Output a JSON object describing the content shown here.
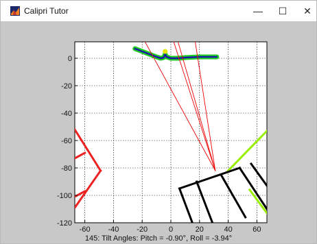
{
  "window": {
    "title": "Calipri Tutor",
    "icon": "matlab-icon",
    "controls": {
      "minimize": "—",
      "maximize": "☐",
      "close": "✕"
    }
  },
  "status": {
    "text": "145: Tilt Angles: Pitch = -0.90°, Roll = -3.94°"
  },
  "chart_data": {
    "type": "line",
    "title": "",
    "xlabel": "",
    "ylabel": "",
    "xlim": [
      -67,
      67
    ],
    "ylim": [
      -120,
      12
    ],
    "xticks": [
      -60,
      -40,
      -20,
      0,
      20,
      40,
      60
    ],
    "yticks": [
      0,
      -20,
      -40,
      -60,
      -80,
      -100,
      -120
    ],
    "grid": true,
    "grid_style": "dotted",
    "series": [
      {
        "role": "profile-fill",
        "color": "#22cc22",
        "x": [
          -25,
          -20,
          -15,
          -10,
          -7,
          -5,
          -4,
          -3,
          0,
          5,
          10,
          20,
          28,
          32
        ],
        "y": [
          7,
          5,
          3,
          1,
          0,
          0.5,
          3,
          1,
          0,
          0,
          0.5,
          1,
          1,
          1
        ]
      },
      {
        "role": "profile-line",
        "color": "#1a1aa8",
        "x": [
          -25,
          -20,
          -15,
          -10,
          -7,
          -5,
          -4,
          -3,
          0,
          5,
          10,
          20,
          28,
          32
        ],
        "y": [
          7,
          5,
          3,
          1,
          0,
          0.5,
          3,
          1,
          0,
          0,
          0.5,
          1,
          1,
          1
        ]
      },
      {
        "role": "marker",
        "color": "#e6e600",
        "x": [
          -4
        ],
        "y": [
          5
        ]
      },
      {
        "role": "rays",
        "color": "#ee0000",
        "segments": [
          [
            [
              31,
              -82
            ],
            [
              -18,
              12
            ]
          ],
          [
            [
              31,
              -82
            ],
            [
              2,
              12
            ]
          ],
          [
            [
              31,
              -82
            ],
            [
              5,
              12
            ]
          ],
          [
            [
              31,
              -82
            ],
            [
              17,
              12
            ]
          ]
        ]
      },
      {
        "role": "left-gauge",
        "color": "#ee2222",
        "segments": [
          [
            [
              -67,
              -52
            ],
            [
              -49,
              -82
            ]
          ],
          [
            [
              -49,
              -82
            ],
            [
              -67,
              -109
            ]
          ],
          [
            [
              -60,
              -69
            ],
            [
              -67,
              -73
            ]
          ],
          [
            [
              -60,
              -97
            ],
            [
              -67,
              -101
            ]
          ]
        ]
      },
      {
        "role": "right-gauge-arm",
        "color": "#99ee00",
        "segments": [
          [
            [
              40,
              -82
            ],
            [
              67,
              -53
            ]
          ],
          [
            [
              55,
              -96
            ],
            [
              67,
              -113
            ]
          ]
        ]
      },
      {
        "role": "right-gauge",
        "color": "#000000",
        "segments": [
          [
            [
              6,
              -95
            ],
            [
              48,
              -80
            ]
          ],
          [
            [
              48,
              -80
            ],
            [
              67,
              -110
            ]
          ],
          [
            [
              6,
              -95
            ],
            [
              15,
              -120
            ]
          ],
          [
            [
              18,
              -90
            ],
            [
              29,
              -120
            ]
          ],
          [
            [
              35,
              -85
            ],
            [
              52,
              -116
            ]
          ],
          [
            [
              56,
              -77
            ],
            [
              67,
              -93
            ]
          ]
        ]
      }
    ]
  }
}
